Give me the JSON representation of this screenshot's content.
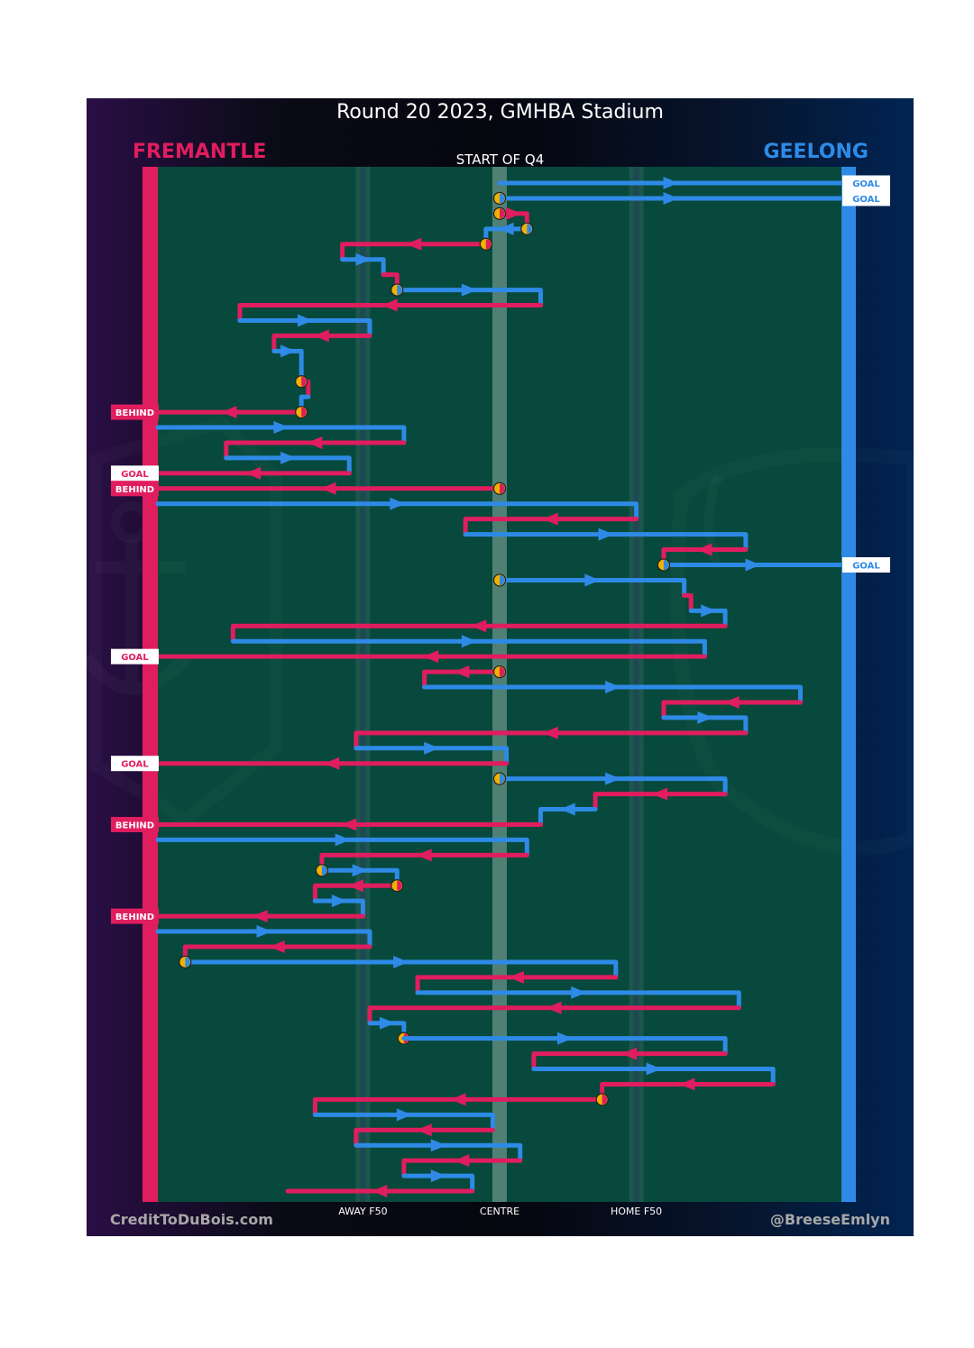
{
  "title": "Round 20 2023, GMHBA Stadium",
  "teams": {
    "left": "FREMANTLE",
    "right": "GEELONG"
  },
  "quarter_label": "START OF Q4",
  "footer": {
    "left": "CreditToDuBois.com",
    "right": "@BreeseEmlyn"
  },
  "colors": {
    "fremantle": "#e01d5f",
    "geelong": "#2e8ae6",
    "turnover": "#f2b100",
    "field": "#07493c"
  },
  "chart_data": {
    "type": "line",
    "title": "Round 20 2023, GMHBA Stadium",
    "subtitle": "START OF Q4",
    "x_axis": {
      "min": 0,
      "max": 100,
      "ticks": [
        {
          "x": 30,
          "label": "AWAY F50"
        },
        {
          "x": 50,
          "label": "CENTRE"
        },
        {
          "x": 70,
          "label": "HOME F50"
        }
      ]
    },
    "y_axis": {
      "chains": 68,
      "note": "each chain is a sequential row, top to bottom"
    },
    "legend": "team names top-left and top-right",
    "chains": [
      {
        "team": "geelong",
        "path": [
          [
            50,
            0
          ],
          [
            100,
            0
          ]
        ],
        "result": "GOAL"
      },
      {
        "team": "geelong",
        "path": [
          [
            50,
            1
          ],
          [
            100,
            1
          ]
        ],
        "result": "GOAL",
        "start_marker": true
      },
      {
        "team": "fremantle",
        "path": [
          [
            50,
            2
          ],
          [
            54,
            2
          ],
          [
            54,
            3
          ]
        ],
        "start_marker": true
      },
      {
        "team": "geelong",
        "path": [
          [
            54,
            3
          ],
          [
            48,
            3
          ],
          [
            48,
            4
          ]
        ],
        "start_marker": true
      },
      {
        "team": "fremantle",
        "path": [
          [
            48,
            4
          ],
          [
            27,
            4
          ],
          [
            27,
            5
          ]
        ],
        "start_marker": true
      },
      {
        "team": "geelong",
        "path": [
          [
            27,
            5
          ],
          [
            33,
            5
          ],
          [
            33,
            6
          ]
        ]
      },
      {
        "team": "fremantle",
        "path": [
          [
            33,
            6
          ],
          [
            35,
            6
          ],
          [
            35,
            7
          ]
        ]
      },
      {
        "team": "geelong",
        "path": [
          [
            35,
            7
          ],
          [
            56,
            7
          ],
          [
            56,
            8
          ]
        ],
        "start_marker": true
      },
      {
        "team": "fremantle",
        "path": [
          [
            56,
            8
          ],
          [
            12,
            8
          ],
          [
            12,
            9
          ]
        ]
      },
      {
        "team": "geelong",
        "path": [
          [
            12,
            9
          ],
          [
            31,
            9
          ],
          [
            31,
            10
          ]
        ]
      },
      {
        "team": "fremantle",
        "path": [
          [
            31,
            10
          ],
          [
            17,
            10
          ],
          [
            17,
            11
          ]
        ]
      },
      {
        "team": "geelong",
        "path": [
          [
            17,
            11
          ],
          [
            21,
            11
          ],
          [
            21,
            13
          ]
        ]
      },
      {
        "team": "fremantle",
        "path": [
          [
            21,
            13
          ],
          [
            22,
            13
          ],
          [
            22,
            14
          ]
        ],
        "start_marker": true
      },
      {
        "team": "geelong",
        "path": [
          [
            22,
            14
          ],
          [
            21,
            14
          ],
          [
            21,
            15
          ]
        ]
      },
      {
        "team": "fremantle",
        "path": [
          [
            21,
            15
          ],
          [
            0,
            15
          ]
        ],
        "result": "BEHIND",
        "start_marker": true
      },
      {
        "team": "geelong",
        "path": [
          [
            0,
            16
          ],
          [
            36,
            16
          ],
          [
            36,
            17
          ]
        ]
      },
      {
        "team": "fremantle",
        "path": [
          [
            36,
            17
          ],
          [
            10,
            17
          ],
          [
            10,
            18
          ]
        ]
      },
      {
        "team": "geelong",
        "path": [
          [
            10,
            18
          ],
          [
            28,
            18
          ],
          [
            28,
            19
          ]
        ]
      },
      {
        "team": "fremantle",
        "path": [
          [
            28,
            19
          ],
          [
            0,
            19
          ]
        ],
        "result": "GOAL"
      },
      {
        "team": "fremantle",
        "path": [
          [
            50,
            20
          ],
          [
            0,
            20
          ]
        ],
        "result": "BEHIND",
        "start_marker": true
      },
      {
        "team": "geelong",
        "path": [
          [
            0,
            21
          ],
          [
            70,
            21
          ],
          [
            70,
            22
          ]
        ]
      },
      {
        "team": "fremantle",
        "path": [
          [
            70,
            22
          ],
          [
            45,
            22
          ],
          [
            45,
            23
          ]
        ]
      },
      {
        "team": "geelong",
        "path": [
          [
            45,
            23
          ],
          [
            86,
            23
          ],
          [
            86,
            24
          ]
        ]
      },
      {
        "team": "fremantle",
        "path": [
          [
            86,
            24
          ],
          [
            74,
            24
          ],
          [
            74,
            25
          ]
        ]
      },
      {
        "team": "geelong",
        "path": [
          [
            74,
            25
          ],
          [
            100,
            25
          ]
        ],
        "result": "GOAL",
        "start_marker": true
      },
      {
        "team": "geelong",
        "path": [
          [
            50,
            26
          ],
          [
            77,
            26
          ],
          [
            77,
            27
          ]
        ],
        "start_marker": true
      },
      {
        "team": "fremantle",
        "path": [
          [
            77,
            27
          ],
          [
            78,
            27
          ],
          [
            78,
            28
          ]
        ]
      },
      {
        "team": "geelong",
        "path": [
          [
            78,
            28
          ],
          [
            83,
            28
          ],
          [
            83,
            29
          ]
        ]
      },
      {
        "team": "fremantle",
        "path": [
          [
            83,
            29
          ],
          [
            11,
            29
          ],
          [
            11,
            30
          ]
        ]
      },
      {
        "team": "geelong",
        "path": [
          [
            11,
            30
          ],
          [
            80,
            30
          ],
          [
            80,
            31
          ]
        ]
      },
      {
        "team": "fremantle",
        "path": [
          [
            80,
            31
          ],
          [
            0,
            31
          ]
        ],
        "result": "GOAL"
      },
      {
        "team": "fremantle",
        "path": [
          [
            50,
            32
          ],
          [
            39,
            32
          ],
          [
            39,
            33
          ]
        ],
        "start_marker": true
      },
      {
        "team": "geelong",
        "path": [
          [
            39,
            33
          ],
          [
            94,
            33
          ],
          [
            94,
            34
          ]
        ]
      },
      {
        "team": "fremantle",
        "path": [
          [
            94,
            34
          ],
          [
            74,
            34
          ],
          [
            74,
            35
          ]
        ]
      },
      {
        "team": "geelong",
        "path": [
          [
            74,
            35
          ],
          [
            86,
            35
          ],
          [
            86,
            36
          ]
        ]
      },
      {
        "team": "fremantle",
        "path": [
          [
            86,
            36
          ],
          [
            29,
            36
          ],
          [
            29,
            37
          ]
        ]
      },
      {
        "team": "geelong",
        "path": [
          [
            29,
            37
          ],
          [
            51,
            37
          ],
          [
            51,
            38
          ]
        ]
      },
      {
        "team": "fremantle",
        "path": [
          [
            51,
            38
          ],
          [
            0,
            38
          ]
        ],
        "result": "GOAL"
      },
      {
        "team": "geelong",
        "path": [
          [
            50,
            39
          ],
          [
            83,
            39
          ],
          [
            83,
            40
          ]
        ],
        "start_marker": true
      },
      {
        "team": "fremantle",
        "path": [
          [
            83,
            40
          ],
          [
            64,
            40
          ],
          [
            64,
            41
          ]
        ]
      },
      {
        "team": "geelong",
        "path": [
          [
            64,
            41
          ],
          [
            56,
            41
          ],
          [
            56,
            42
          ]
        ]
      },
      {
        "team": "fremantle",
        "path": [
          [
            56,
            42
          ],
          [
            0,
            42
          ]
        ],
        "result": "BEHIND"
      },
      {
        "team": "geelong",
        "path": [
          [
            0,
            43
          ],
          [
            54,
            43
          ],
          [
            54,
            44
          ]
        ]
      },
      {
        "team": "fremantle",
        "path": [
          [
            54,
            44
          ],
          [
            24,
            44
          ],
          [
            24,
            45
          ]
        ]
      },
      {
        "team": "geelong",
        "path": [
          [
            24,
            45
          ],
          [
            35,
            45
          ],
          [
            35,
            46
          ]
        ],
        "start_marker": true
      },
      {
        "team": "fremantle",
        "path": [
          [
            35,
            46
          ],
          [
            23,
            46
          ],
          [
            23,
            47
          ]
        ],
        "start_marker": true
      },
      {
        "team": "geelong",
        "path": [
          [
            23,
            47
          ],
          [
            30,
            47
          ],
          [
            30,
            48
          ]
        ]
      },
      {
        "team": "fremantle",
        "path": [
          [
            30,
            48
          ],
          [
            0,
            48
          ]
        ],
        "result": "BEHIND"
      },
      {
        "team": "geelong",
        "path": [
          [
            0,
            49
          ],
          [
            31,
            49
          ],
          [
            31,
            50
          ]
        ]
      },
      {
        "team": "fremantle",
        "path": [
          [
            31,
            50
          ],
          [
            4,
            50
          ],
          [
            4,
            51
          ]
        ]
      },
      {
        "team": "geelong",
        "path": [
          [
            4,
            51
          ],
          [
            67,
            51
          ],
          [
            67,
            52
          ]
        ],
        "start_marker": true
      },
      {
        "team": "fremantle",
        "path": [
          [
            67,
            52
          ],
          [
            38,
            52
          ],
          [
            38,
            53
          ]
        ]
      },
      {
        "team": "geelong",
        "path": [
          [
            38,
            53
          ],
          [
            85,
            53
          ],
          [
            85,
            54
          ]
        ]
      },
      {
        "team": "fremantle",
        "path": [
          [
            85,
            54
          ],
          [
            31,
            54
          ],
          [
            31,
            55
          ]
        ]
      },
      {
        "team": "geelong",
        "path": [
          [
            31,
            55
          ],
          [
            36,
            55
          ],
          [
            36,
            56
          ]
        ]
      },
      {
        "team": "fremantle",
        "path": [
          [
            36,
            56
          ],
          [
            36,
            56
          ]
        ],
        "start_marker": true
      },
      {
        "team": "geelong",
        "path": [
          [
            36,
            56
          ],
          [
            83,
            56
          ],
          [
            83,
            57
          ]
        ]
      },
      {
        "team": "fremantle",
        "path": [
          [
            83,
            57
          ],
          [
            55,
            57
          ],
          [
            55,
            58
          ]
        ]
      },
      {
        "team": "geelong",
        "path": [
          [
            55,
            58
          ],
          [
            90,
            58
          ],
          [
            90,
            59
          ]
        ]
      },
      {
        "team": "fremantle",
        "path": [
          [
            90,
            59
          ],
          [
            65,
            59
          ],
          [
            65,
            60
          ]
        ]
      },
      {
        "team": "fremantle",
        "path": [
          [
            65,
            60
          ],
          [
            23,
            60
          ],
          [
            23,
            61
          ]
        ],
        "start_marker": true
      },
      {
        "team": "geelong",
        "path": [
          [
            23,
            61
          ],
          [
            49,
            61
          ],
          [
            49,
            62
          ]
        ]
      },
      {
        "team": "fremantle",
        "path": [
          [
            49,
            62
          ],
          [
            29,
            62
          ],
          [
            29,
            63
          ]
        ]
      },
      {
        "team": "geelong",
        "path": [
          [
            29,
            63
          ],
          [
            53,
            63
          ],
          [
            53,
            64
          ]
        ]
      },
      {
        "team": "fremantle",
        "path": [
          [
            53,
            64
          ],
          [
            36,
            64
          ],
          [
            36,
            65
          ]
        ]
      },
      {
        "team": "geelong",
        "path": [
          [
            36,
            65
          ],
          [
            46,
            65
          ],
          [
            46,
            66
          ]
        ]
      },
      {
        "team": "fremantle",
        "path": [
          [
            46,
            66
          ],
          [
            19,
            66
          ]
        ]
      }
    ]
  }
}
